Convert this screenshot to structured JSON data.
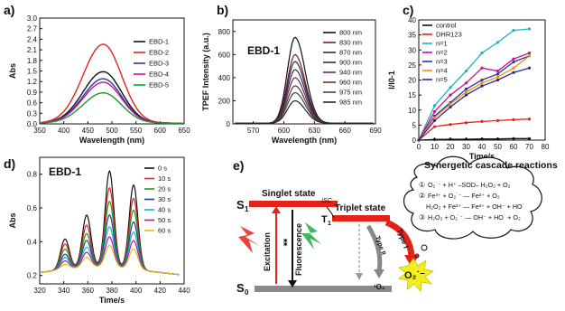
{
  "chart_data": [
    {
      "panel": "a)",
      "type": "line",
      "xlabel": "Wavelength (nm)",
      "ylabel": "Abs",
      "xlim": [
        350,
        650
      ],
      "ylim": [
        0.0,
        3.0
      ],
      "xticks": [
        "350",
        "400",
        "450",
        "500",
        "550",
        "600",
        "650"
      ],
      "yticks": [
        "0.0",
        "0.3",
        "0.6",
        "0.9",
        "1.2",
        "1.5",
        "1.8",
        "2.1",
        "2.4",
        "2.7",
        "3.0"
      ],
      "legend_position": "top-right",
      "series": [
        {
          "name": "EBD-1",
          "color": "#111111",
          "peak_x": 482,
          "peak_y": 1.48
        },
        {
          "name": "EBD-2",
          "color": "#e2231a",
          "peak_x": 482,
          "peak_y": 2.26
        },
        {
          "name": "EBD-3",
          "color": "#2b3a9e",
          "peak_x": 482,
          "peak_y": 1.28
        },
        {
          "name": "EBD-4",
          "color": "#c0139c",
          "peak_x": 482,
          "peak_y": 1.18
        },
        {
          "name": "EBD-5",
          "color": "#1a9a2a",
          "peak_x": 482,
          "peak_y": 0.88
        }
      ]
    },
    {
      "panel": "b)",
      "type": "line",
      "title": "EBD-1",
      "xlabel": "Wavelength (nm)",
      "ylabel": "TPEF Intensity (a.u.)",
      "xlim": [
        550,
        690
      ],
      "ylim": [
        0,
        900
      ],
      "xticks": [
        "570",
        "600",
        "630",
        "660",
        "690"
      ],
      "yticks": [
        "0",
        "200",
        "400",
        "600",
        "800"
      ],
      "legend_position": "top-right",
      "series": [
        {
          "name": "800 nm",
          "color": "#111111",
          "peak_x": 611,
          "peak_y": 750
        },
        {
          "name": "830 nm",
          "color": "#7a1f2b",
          "peak_x": 611,
          "peak_y": 600
        },
        {
          "name": "870 nm",
          "color": "#2b2b55",
          "peak_x": 611,
          "peak_y": 540
        },
        {
          "name": "900 nm",
          "color": "#3a2a4a",
          "peak_x": 611,
          "peak_y": 470
        },
        {
          "name": "940 nm",
          "color": "#6a2a5a",
          "peak_x": 611,
          "peak_y": 400
        },
        {
          "name": "960 nm",
          "color": "#5a3a30",
          "peak_x": 611,
          "peak_y": 330
        },
        {
          "name": "975 nm",
          "color": "#444444",
          "peak_x": 611,
          "peak_y": 270
        },
        {
          "name": "985 nm",
          "color": "#222222",
          "peak_x": 611,
          "peak_y": 200
        }
      ]
    },
    {
      "panel": "c)",
      "type": "line",
      "xlabel": "Time/s",
      "ylabel": "I/I0-1",
      "xlim": [
        0,
        80
      ],
      "ylim": [
        0,
        40
      ],
      "xticks": [
        "0",
        "10",
        "20",
        "30",
        "40",
        "50",
        "60",
        "70",
        "80"
      ],
      "yticks": [
        "0",
        "5",
        "10",
        "15",
        "20",
        "25",
        "30",
        "35",
        "40"
      ],
      "legend_position": "top-left",
      "x": [
        0,
        10,
        20,
        30,
        40,
        50,
        60,
        70
      ],
      "series": [
        {
          "name": "control",
          "color": "#111111",
          "values": [
            0,
            0.2,
            0.3,
            0.3,
            0.4,
            0.4,
            0.5,
            0.5
          ]
        },
        {
          "name": "DHR123",
          "color": "#e2231a",
          "values": [
            0,
            4.5,
            5.2,
            5.8,
            6.2,
            6.5,
            6.8,
            7.0
          ]
        },
        {
          "name": "n=1",
          "color": "#20b0c0",
          "values": [
            0,
            11.5,
            17.5,
            23,
            29,
            32.5,
            36.5,
            37.0
          ]
        },
        {
          "name": "n=2",
          "color": "#c0139c",
          "values": [
            0,
            9.5,
            15,
            19,
            24,
            23,
            27,
            29
          ]
        },
        {
          "name": "n=3",
          "color": "#2b3a9e",
          "values": [
            0,
            8.0,
            12.5,
            17,
            20,
            22,
            26,
            28
          ]
        },
        {
          "name": "n=4",
          "color": "#f08a1c",
          "values": [
            0,
            7.5,
            12.0,
            16,
            19,
            21,
            24,
            28
          ]
        },
        {
          "name": "n=5",
          "color": "#2a2a8a",
          "values": [
            0,
            6.5,
            11.0,
            15,
            18,
            20,
            22.5,
            24
          ]
        }
      ]
    },
    {
      "panel": "d)",
      "type": "line",
      "title": "EBD-1",
      "xlabel": "Time/s",
      "ylabel": "Abs",
      "xlim": [
        320,
        440
      ],
      "ylim": [
        0.15,
        0.9
      ],
      "xticks": [
        "320",
        "340",
        "360",
        "380",
        "400",
        "420",
        "440"
      ],
      "yticks": [
        "0.2",
        "0.4",
        "0.6",
        "0.8"
      ],
      "legend_position": "top-right",
      "peaks_x": [
        341,
        359,
        378,
        398
      ],
      "series": [
        {
          "name": "0 s",
          "color": "#111111",
          "peak_values": [
            0.4,
            0.53,
            0.79,
            0.72
          ]
        },
        {
          "name": "10 s",
          "color": "#e2231a",
          "peak_values": [
            0.37,
            0.47,
            0.69,
            0.64
          ]
        },
        {
          "name": "20 s",
          "color": "#1a9a2a",
          "peak_values": [
            0.34,
            0.42,
            0.61,
            0.57
          ]
        },
        {
          "name": "30 s",
          "color": "#2b3a9e",
          "peak_values": [
            0.31,
            0.38,
            0.53,
            0.5
          ]
        },
        {
          "name": "40 s",
          "color": "#20b0c0",
          "peak_values": [
            0.29,
            0.34,
            0.46,
            0.44
          ]
        },
        {
          "name": "50 s",
          "color": "#c0139c",
          "peak_values": [
            0.27,
            0.31,
            0.4,
            0.39
          ]
        },
        {
          "name": "60 s",
          "color": "#d8c21a",
          "peak_values": [
            0.25,
            0.28,
            0.35,
            0.34
          ]
        }
      ]
    }
  ],
  "panel_e": {
    "label": "e)",
    "singlet": "Singlet state",
    "triplet": "Triplet state",
    "s1": "S",
    "s1_sub": "1",
    "s0": "S",
    "s0_sub": "0",
    "t1": "T",
    "t1_sub": "1",
    "isc": "ISC",
    "excitation": "Excitation",
    "fluorescence": "Fluorescence",
    "type1": "Type I",
    "type2": "Type II",
    "o2_out": "O₂˙⁻",
    "singlet_o2": "¹O₂",
    "cascade_title": "Synergetic cascade reactions",
    "reaction1_num": "①",
    "reaction1": "O₂˙⁻ + H⁺ ⎯SOD⎯ H₂O₂ + O₂",
    "reaction2_num": "②",
    "reaction2a": "Fe³⁺ + O₂˙⁻ ⎯⎯ Fe²⁺ + O₂",
    "reaction2b": "H₂O₂ + Fe²⁺ ⎯⎯ Fe³⁺ + OH⁻ + HO˙",
    "reaction3_num": "③",
    "reaction3": "H₂O₂ + O₂˙⁻ ⎯⎯ OH⁻ + HO˙ + O₂",
    "colors": {
      "red": "#e2231a",
      "purple": "#9b1fb8",
      "gray": "#888888",
      "yellow": "#f2ef1c",
      "green": "#2ab04a"
    }
  }
}
